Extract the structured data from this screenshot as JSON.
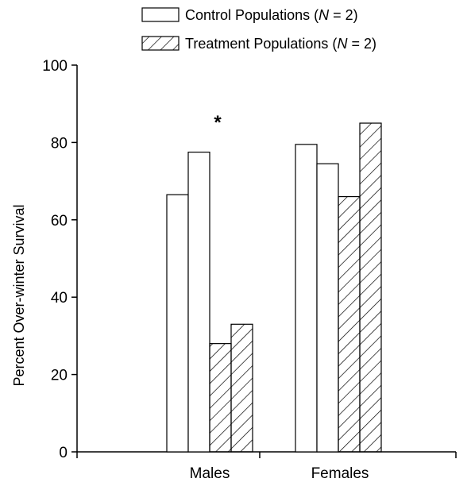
{
  "chart_data": {
    "type": "bar",
    "title": "",
    "xlabel": "",
    "ylabel": "Percent Over-winter Survival",
    "ylim": [
      0,
      100
    ],
    "yticks": [
      0,
      20,
      40,
      60,
      80,
      100
    ],
    "categories": [
      "Males",
      "Females"
    ],
    "series": [
      {
        "name": "Control Populations (N = 2)",
        "fill": "open",
        "values": [
          [
            66.5,
            77.5
          ],
          [
            79.5,
            74.5
          ]
        ]
      },
      {
        "name": "Treatment Populations (N = 2)",
        "fill": "hatched",
        "values": [
          [
            28,
            33
          ],
          [
            66,
            85
          ]
        ]
      }
    ],
    "annotations": [
      {
        "text": "*",
        "category": "Males"
      }
    ],
    "legend": {
      "position": "top",
      "items": [
        {
          "prefix": "Control Populations (",
          "n_symbol": "N",
          "suffix": " = 2)"
        },
        {
          "prefix": "Treatment Populations (",
          "n_symbol": "N",
          "suffix": " = 2)"
        }
      ]
    },
    "grid": false,
    "colors": {
      "bar_stroke": "#000000",
      "bar_fill": "#ffffff",
      "text": "#000000"
    }
  }
}
